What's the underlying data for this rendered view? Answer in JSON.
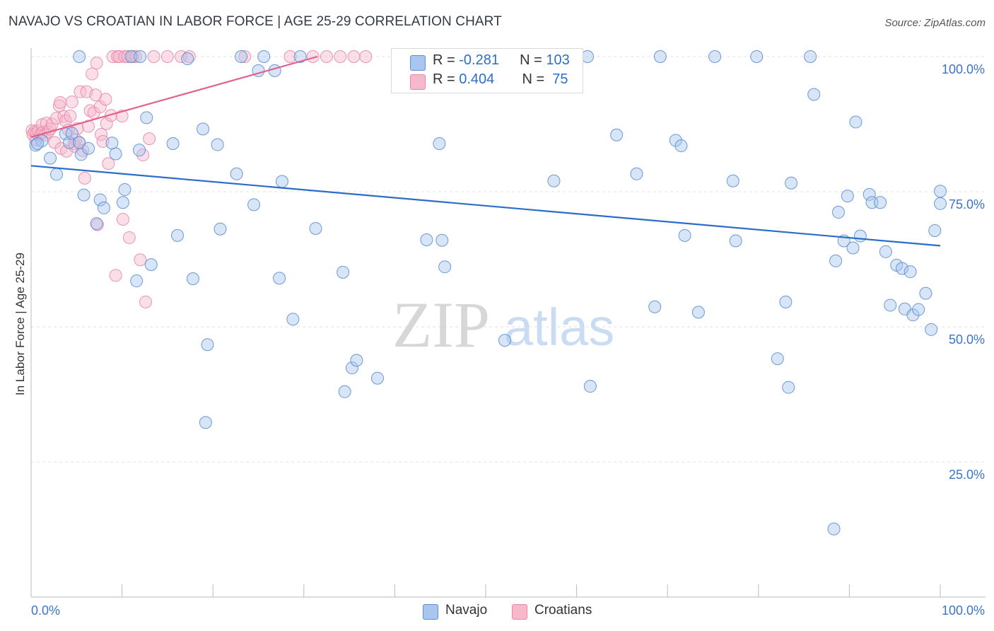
{
  "title": "NAVAJO VS CROATIAN IN LABOR FORCE | AGE 25-29 CORRELATION CHART",
  "source": "Source: ZipAtlas.com",
  "watermark": {
    "zip": "ZIP",
    "atlas": "atlas"
  },
  "legend": {
    "navajo": {
      "r_label": "R = ",
      "r_value": "-0.281",
      "n_label": "N = ",
      "n_value": "103"
    },
    "croatians": {
      "r_label": "R = ",
      "r_value": "0.404",
      "n_label": "N = ",
      "n_value": " 75"
    }
  },
  "bottom_legend": {
    "navajo": "Navajo",
    "croatians": "Croatians"
  },
  "colors": {
    "navajo_fill": "#a9c6ee",
    "navajo_stroke": "#5b8fd6",
    "navajo_line": "#2b6dc9",
    "croatian_fill": "#f7b8cb",
    "croatian_stroke": "#e889a7",
    "croatian_line": "#e0608f",
    "axis_label": "#3b74c7"
  },
  "chart_data": {
    "type": "scatter",
    "title": "NAVAJO VS CROATIAN IN LABOR FORCE | AGE 25-29 CORRELATION CHART",
    "xlabel": "",
    "ylabel": "In Labor Force | Age 25-29",
    "xlim": [
      0,
      100
    ],
    "ylim": [
      0,
      100
    ],
    "x_tick_labels": [
      {
        "x": 0,
        "label": "0.0%"
      },
      {
        "x": 100,
        "label": "100.0%"
      }
    ],
    "y_tick_labels": [
      {
        "y": 100,
        "label": "100.0%"
      },
      {
        "y": 75,
        "label": "75.0%"
      },
      {
        "y": 50,
        "label": "50.0%"
      },
      {
        "y": 25,
        "label": "25.0%"
      }
    ],
    "series": [
      {
        "name": "Navajo",
        "r": -0.281,
        "n": 103,
        "trend": {
          "x": [
            0,
            100
          ],
          "y": [
            79.8,
            65.0
          ]
        },
        "points": [
          [
            0.5,
            83.6
          ],
          [
            1.2,
            84.4
          ],
          [
            2.1,
            81.2
          ],
          [
            2.8,
            78.2
          ],
          [
            3.8,
            85.7
          ],
          [
            4.2,
            84.1
          ],
          [
            5.3,
            84.1
          ],
          [
            5.5,
            81.9
          ],
          [
            6.3,
            83.0
          ],
          [
            5.8,
            74.4
          ],
          [
            7.2,
            69.1
          ],
          [
            7.6,
            73.5
          ],
          [
            8.0,
            72.0
          ],
          [
            8.9,
            84.0
          ],
          [
            9.3,
            82.0
          ],
          [
            10.1,
            73.0
          ],
          [
            10.3,
            75.4
          ],
          [
            11.6,
            58.5
          ],
          [
            11.9,
            82.7
          ],
          [
            12.7,
            88.7
          ],
          [
            13.2,
            61.5
          ],
          [
            15.6,
            83.9
          ],
          [
            16.1,
            66.9
          ],
          [
            17.2,
            99.6
          ],
          [
            17.8,
            58.9
          ],
          [
            18.9,
            86.6
          ],
          [
            19.2,
            32.3
          ],
          [
            19.4,
            46.7
          ],
          [
            20.5,
            83.7
          ],
          [
            20.8,
            68.1
          ],
          [
            22.6,
            78.3
          ],
          [
            23.1,
            100.0
          ],
          [
            24.5,
            72.6
          ],
          [
            25.0,
            97.4
          ],
          [
            25.6,
            100.0
          ],
          [
            26.8,
            97.4
          ],
          [
            27.3,
            59.0
          ],
          [
            27.6,
            76.9
          ],
          [
            28.8,
            51.4
          ],
          [
            29.6,
            100.0
          ],
          [
            31.3,
            68.2
          ],
          [
            34.3,
            60.1
          ],
          [
            34.5,
            38.0
          ],
          [
            35.3,
            42.4
          ],
          [
            35.8,
            43.8
          ],
          [
            38.1,
            40.5
          ],
          [
            41.1,
            100.0
          ],
          [
            43.5,
            66.1
          ],
          [
            44.9,
            83.9
          ],
          [
            45.2,
            66.0
          ],
          [
            45.5,
            61.1
          ],
          [
            52.1,
            47.5
          ],
          [
            56.6,
            100.0
          ],
          [
            57.5,
            77.0
          ],
          [
            61.2,
            100.0
          ],
          [
            61.5,
            39.0
          ],
          [
            64.4,
            85.5
          ],
          [
            66.6,
            78.3
          ],
          [
            68.6,
            53.7
          ],
          [
            69.2,
            100.0
          ],
          [
            70.9,
            84.5
          ],
          [
            71.5,
            83.5
          ],
          [
            71.9,
            66.9
          ],
          [
            73.4,
            52.7
          ],
          [
            75.2,
            100.0
          ],
          [
            77.2,
            77.0
          ],
          [
            77.5,
            65.9
          ],
          [
            79.8,
            100.0
          ],
          [
            82.1,
            44.1
          ],
          [
            83.0,
            54.6
          ],
          [
            83.3,
            38.8
          ],
          [
            83.6,
            76.6
          ],
          [
            85.7,
            100.0
          ],
          [
            86.1,
            93.0
          ],
          [
            88.3,
            12.6
          ],
          [
            88.5,
            62.2
          ],
          [
            88.8,
            71.2
          ],
          [
            89.4,
            65.9
          ],
          [
            89.8,
            74.2
          ],
          [
            90.4,
            64.6
          ],
          [
            90.7,
            87.9
          ],
          [
            91.2,
            66.8
          ],
          [
            92.2,
            74.5
          ],
          [
            92.5,
            73.0
          ],
          [
            93.4,
            73.0
          ],
          [
            94.0,
            63.9
          ],
          [
            94.5,
            54.0
          ],
          [
            95.2,
            61.4
          ],
          [
            95.8,
            60.8
          ],
          [
            96.1,
            53.3
          ],
          [
            96.7,
            60.2
          ],
          [
            97.0,
            52.2
          ],
          [
            97.6,
            53.2
          ],
          [
            98.4,
            56.2
          ],
          [
            99.0,
            49.5
          ],
          [
            99.4,
            67.8
          ],
          [
            100.0,
            72.8
          ],
          [
            100.0,
            75.1
          ],
          [
            4.5,
            85.8
          ],
          [
            0.7,
            83.9
          ],
          [
            5.3,
            100.0
          ],
          [
            11.0,
            100.0
          ],
          [
            12.0,
            100.0
          ]
        ]
      },
      {
        "name": "Croatians",
        "r": 0.404,
        "n": 75,
        "trend": {
          "x": [
            0,
            31.5
          ],
          "y": [
            85.1,
            100.0
          ]
        },
        "points": [
          [
            0.1,
            86.3
          ],
          [
            0.2,
            85.6
          ],
          [
            0.4,
            86.1
          ],
          [
            0.5,
            84.6
          ],
          [
            0.6,
            85.9
          ],
          [
            0.8,
            86.3
          ],
          [
            1.1,
            85.7
          ],
          [
            1.2,
            87.4
          ],
          [
            1.3,
            86.0
          ],
          [
            1.5,
            85.5
          ],
          [
            1.7,
            87.7
          ],
          [
            1.9,
            86.1
          ],
          [
            2.1,
            86.6
          ],
          [
            2.3,
            87.5
          ],
          [
            2.6,
            84.1
          ],
          [
            2.8,
            88.6
          ],
          [
            3.1,
            90.9
          ],
          [
            3.2,
            91.5
          ],
          [
            3.3,
            83.0
          ],
          [
            3.6,
            88.9
          ],
          [
            3.8,
            88.1
          ],
          [
            3.9,
            82.5
          ],
          [
            4.1,
            86.4
          ],
          [
            4.3,
            89.0
          ],
          [
            4.5,
            91.6
          ],
          [
            4.7,
            83.9
          ],
          [
            4.8,
            83.4
          ],
          [
            4.9,
            84.6
          ],
          [
            5.1,
            86.7
          ],
          [
            5.4,
            93.5
          ],
          [
            5.3,
            84.1
          ],
          [
            5.7,
            82.6
          ],
          [
            5.9,
            77.5
          ],
          [
            6.1,
            93.5
          ],
          [
            6.3,
            87.1
          ],
          [
            6.5,
            90.0
          ],
          [
            6.7,
            96.8
          ],
          [
            6.9,
            89.6
          ],
          [
            7.1,
            92.9
          ],
          [
            7.2,
            98.8
          ],
          [
            7.3,
            68.9
          ],
          [
            7.6,
            90.7
          ],
          [
            7.7,
            85.6
          ],
          [
            7.9,
            84.3
          ],
          [
            8.2,
            92.1
          ],
          [
            8.3,
            87.6
          ],
          [
            8.5,
            80.2
          ],
          [
            8.8,
            89.1
          ],
          [
            9.0,
            100.0
          ],
          [
            9.3,
            59.5
          ],
          [
            9.5,
            100.0
          ],
          [
            9.7,
            100.0
          ],
          [
            10.0,
            89.0
          ],
          [
            10.1,
            69.9
          ],
          [
            10.3,
            100.0
          ],
          [
            10.6,
            100.0
          ],
          [
            10.8,
            66.5
          ],
          [
            11.0,
            100.0
          ],
          [
            11.2,
            100.0
          ],
          [
            11.5,
            100.0
          ],
          [
            12.0,
            62.4
          ],
          [
            12.3,
            81.8
          ],
          [
            12.6,
            54.6
          ],
          [
            13.0,
            84.8
          ],
          [
            13.5,
            100.0
          ],
          [
            15.0,
            100.0
          ],
          [
            16.5,
            100.0
          ],
          [
            17.4,
            100.0
          ],
          [
            23.5,
            100.0
          ],
          [
            28.5,
            100.0
          ],
          [
            31.0,
            100.0
          ],
          [
            32.5,
            100.0
          ],
          [
            34.0,
            100.0
          ],
          [
            35.5,
            100.0
          ],
          [
            36.8,
            100.0
          ]
        ]
      }
    ]
  }
}
